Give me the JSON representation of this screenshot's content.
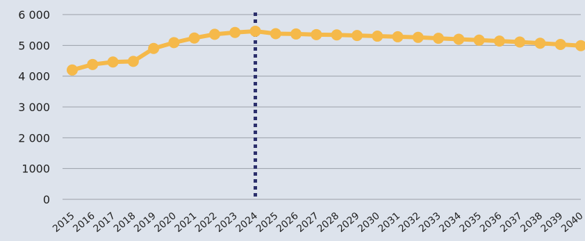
{
  "chart_data": {
    "type": "line",
    "title": "",
    "xlabel": "",
    "ylabel": "",
    "x": [
      2015,
      2016,
      2017,
      2018,
      2019,
      2020,
      2021,
      2022,
      2023,
      2024,
      2025,
      2026,
      2027,
      2028,
      2029,
      2030,
      2031,
      2032,
      2033,
      2034,
      2035,
      2036,
      2037,
      2038,
      2039,
      2040
    ],
    "series": [
      {
        "values": [
          4200,
          4380,
          4460,
          4480,
          4900,
          5090,
          5240,
          5360,
          5420,
          5460,
          5380,
          5370,
          5350,
          5340,
          5320,
          5300,
          5280,
          5260,
          5230,
          5200,
          5170,
          5140,
          5110,
          5070,
          5030,
          4990
        ]
      }
    ],
    "ylim": [
      0,
      6000
    ],
    "yticks": [
      0,
      1000,
      2000,
      3000,
      4000,
      5000,
      6000
    ],
    "ytick_labels": [
      "0",
      "1000",
      "2 000",
      "3 000",
      "4 000",
      "5 000",
      "6 000"
    ],
    "xtick_labels": [
      "2015",
      "2016",
      "2017",
      "2018",
      "2019",
      "2020",
      "2021",
      "2022",
      "2023",
      "2024",
      "2025",
      "2026",
      "2027",
      "2028",
      "2029",
      "2030",
      "2031",
      "2032",
      "2033",
      "2034",
      "2035",
      "2036",
      "2037",
      "2038",
      "2039",
      "2040"
    ],
    "reference_line": {
      "x": 2024,
      "style": "dotted"
    },
    "grid": true,
    "legend": "none",
    "colors": {
      "background": "#dde3ec",
      "line": "#f5b94a",
      "marker": "#f5b94a",
      "reference_line": "#2b2f6b",
      "grid": "#9a9fa8"
    }
  }
}
